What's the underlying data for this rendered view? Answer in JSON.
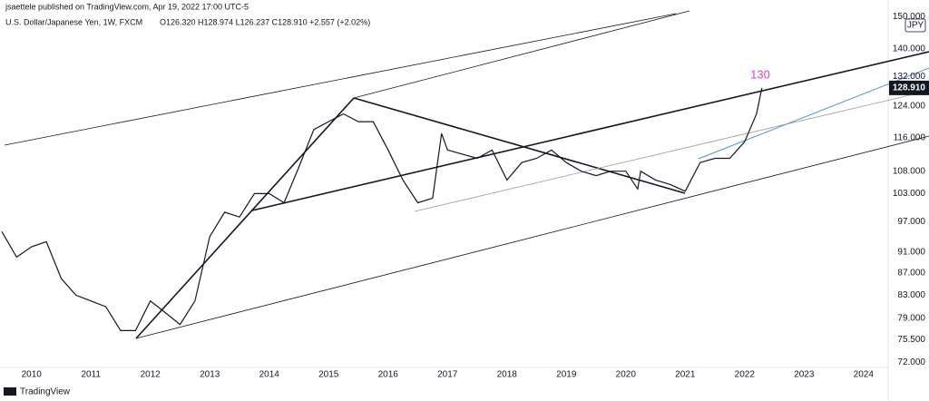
{
  "chart_data": {
    "type": "line",
    "publisher": "jsaettele published on TradingView.com, Apr 19, 2022 17:00 UTC-5",
    "title": "U.S. Dollar/Japanese Yen, 1W, FXCM",
    "ohlc_readout": "O126.320 H128.974 L126.237 C128.910 +2.557 (+2.02%)",
    "currency": "JPY",
    "annotation": "130",
    "brand": "TradingView",
    "log_scale": true,
    "grid": false,
    "series": [
      {
        "name": "USDJPY",
        "color": "#131722",
        "x": [
          2009.5,
          2009.75,
          2010.0,
          2010.25,
          2010.5,
          2010.75,
          2011.0,
          2011.25,
          2011.5,
          2011.75,
          2012.0,
          2012.25,
          2012.5,
          2012.75,
          2013.0,
          2013.25,
          2013.5,
          2013.75,
          2014.0,
          2014.25,
          2014.5,
          2014.75,
          2015.0,
          2015.25,
          2015.5,
          2015.75,
          2016.0,
          2016.25,
          2016.5,
          2016.75,
          2016.9,
          2017.0,
          2017.25,
          2017.5,
          2017.75,
          2018.0,
          2018.25,
          2018.5,
          2018.75,
          2019.0,
          2019.25,
          2019.5,
          2019.75,
          2020.0,
          2020.2,
          2020.25,
          2020.5,
          2020.75,
          2021.0,
          2021.25,
          2021.5,
          2021.75,
          2022.0,
          2022.2,
          2022.29
        ],
        "values": [
          95,
          90,
          92,
          93,
          86,
          83,
          82,
          81,
          77,
          77,
          82,
          80,
          78,
          82,
          94,
          99,
          98,
          103,
          103,
          101,
          109,
          118,
          120,
          122,
          120,
          120,
          113,
          106,
          101,
          102,
          117,
          113,
          112,
          111,
          113,
          106,
          110,
          111,
          113,
          110,
          108,
          107,
          108,
          108,
          104,
          108,
          106,
          105,
          103.5,
          110,
          111,
          111,
          115,
          122,
          128.91
        ]
      }
    ],
    "last_price": {
      "value": 128.91,
      "label": "128.910"
    },
    "xlim": [
      2009.47,
      2024.4
    ],
    "xticks": [
      2010,
      2011,
      2012,
      2013,
      2014,
      2015,
      2016,
      2017,
      2018,
      2019,
      2020,
      2021,
      2022,
      2023,
      2024
    ],
    "ylim": [
      71.2,
      152.4
    ],
    "yticks": [
      {
        "value": 72,
        "label": "72.000"
      },
      {
        "value": 75.5,
        "label": "75.500"
      },
      {
        "value": 79,
        "label": "79.000"
      },
      {
        "value": 83,
        "label": "83.000"
      },
      {
        "value": 87,
        "label": "87.000"
      },
      {
        "value": 91,
        "label": "91.000"
      },
      {
        "value": 97,
        "label": "97.000"
      },
      {
        "value": 103,
        "label": "103.000"
      },
      {
        "value": 108,
        "label": "108.000"
      },
      {
        "value": 116,
        "label": "116.000"
      },
      {
        "value": 124,
        "label": "124.000"
      },
      {
        "value": 132,
        "label": "132.000"
      },
      {
        "value": 140,
        "label": "140.000"
      },
      {
        "value": 150,
        "label": "150.000"
      }
    ]
  }
}
